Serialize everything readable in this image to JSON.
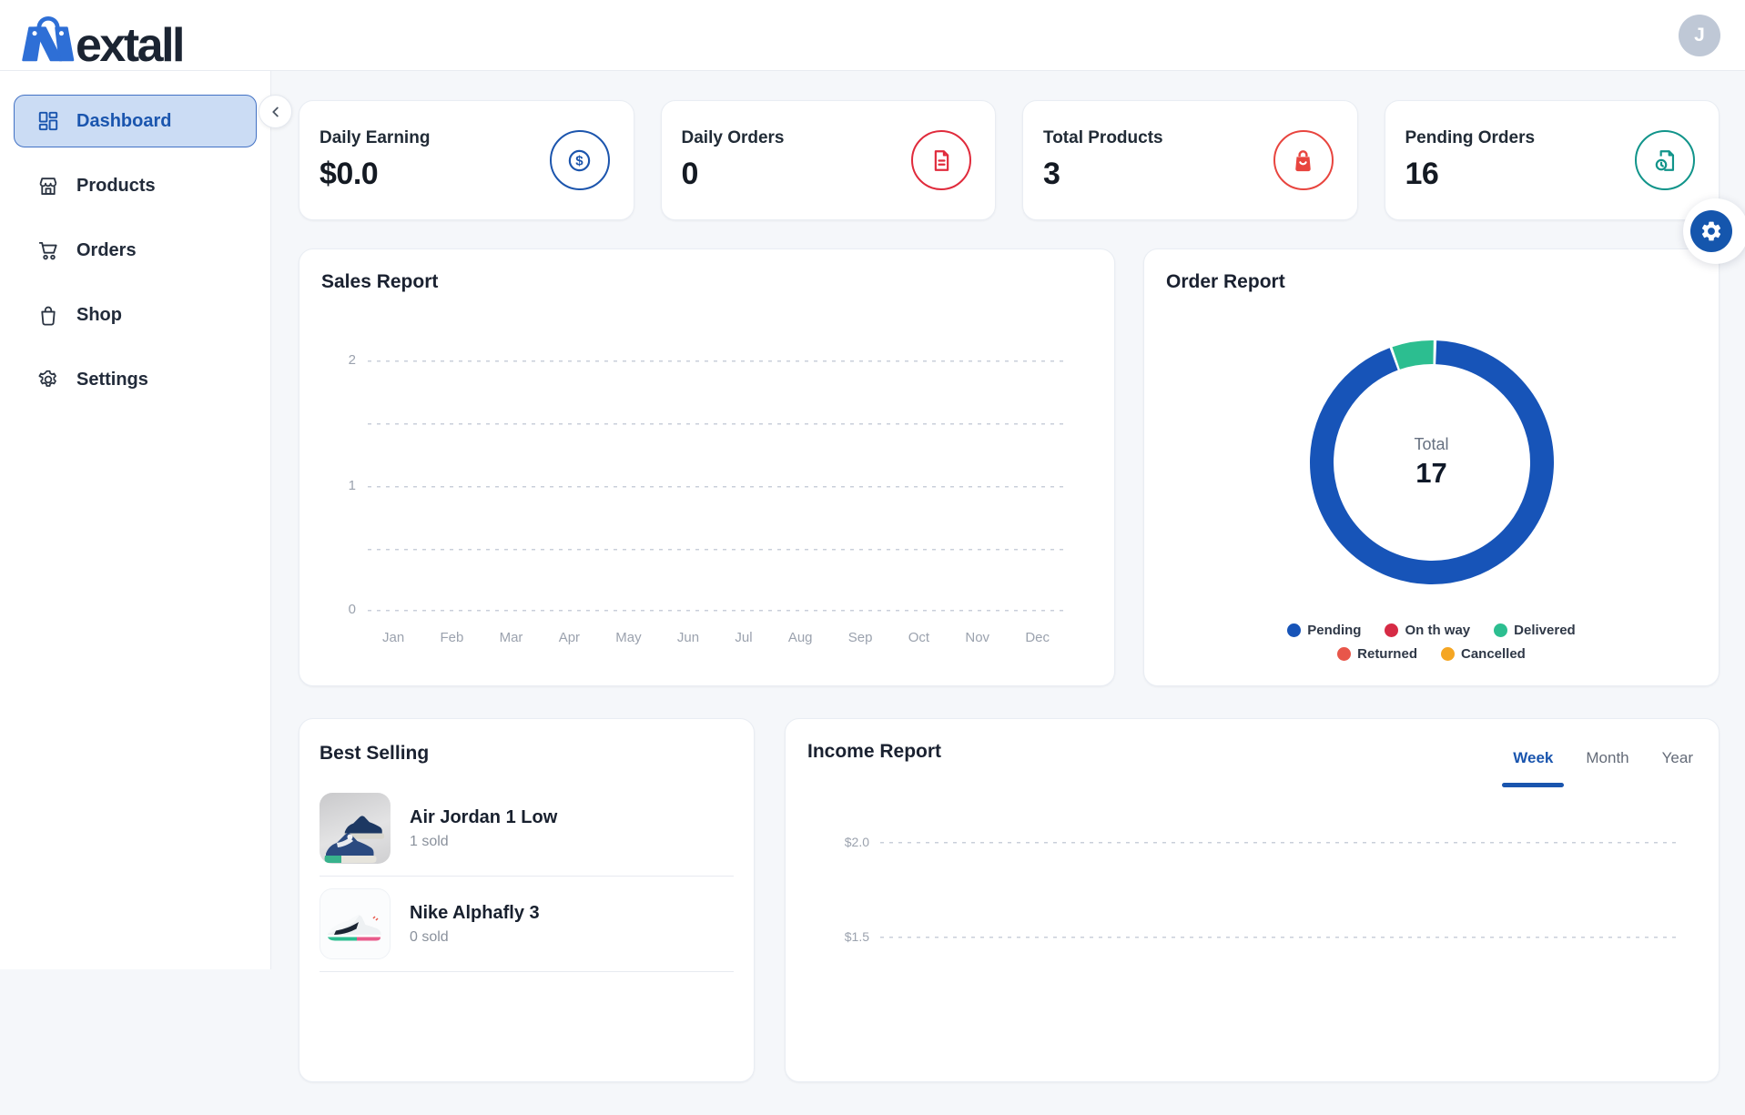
{
  "brand": {
    "name": "Nextall",
    "logo_text": "extall",
    "logo_icon": "shopping-bag-n-icon"
  },
  "header": {
    "avatar_initial": "J"
  },
  "sidebar": {
    "items": [
      {
        "label": "Dashboard",
        "icon": "dashboard-icon",
        "active": true
      },
      {
        "label": "Products",
        "icon": "storefront-icon",
        "active": false
      },
      {
        "label": "Orders",
        "icon": "cart-icon",
        "active": false
      },
      {
        "label": "Shop",
        "icon": "shop-bag-icon",
        "active": false
      },
      {
        "label": "Settings",
        "icon": "gear-icon",
        "active": false
      }
    ]
  },
  "stats": [
    {
      "label": "Daily Earning",
      "value": "$0.0",
      "icon": "dollar-circle-icon",
      "accent": "#1c55ad"
    },
    {
      "label": "Daily Orders",
      "value": "0",
      "icon": "document-icon",
      "accent": "#e02b3c"
    },
    {
      "label": "Total Products",
      "value": "3",
      "icon": "shopping-bag-icon",
      "accent": "#e8453f"
    },
    {
      "label": "Pending Orders",
      "value": "16",
      "icon": "file-clock-icon",
      "accent": "#11948a"
    }
  ],
  "chart_data": [
    {
      "id": "sales_report",
      "type": "line",
      "title": "Sales Report",
      "categories": [
        "Jan",
        "Feb",
        "Mar",
        "Apr",
        "May",
        "Jun",
        "Jul",
        "Aug",
        "Sep",
        "Oct",
        "Nov",
        "Dec"
      ],
      "series": [],
      "ylim": [
        0,
        2
      ],
      "yticks": [
        0,
        1,
        2
      ],
      "grid": "dashed-horizontal",
      "note": "empty chart, no data plotted"
    },
    {
      "id": "order_report",
      "type": "donut",
      "title": "Order Report",
      "center_label": "Total",
      "total": 17,
      "segments": [
        {
          "label": "Pending",
          "value": 16,
          "color": "#1754b8"
        },
        {
          "label": "On th way",
          "value": 0,
          "color": "#d62b45"
        },
        {
          "label": "Delivered",
          "value": 1,
          "color": "#2cbe90"
        },
        {
          "label": "Returned",
          "value": 0,
          "color": "#e8564a"
        },
        {
          "label": "Cancelled",
          "value": 0,
          "color": "#f5a623"
        }
      ],
      "legend_position": "bottom"
    },
    {
      "id": "income_report",
      "type": "line",
      "title": "Income Report",
      "tabs": [
        "Week",
        "Month",
        "Year"
      ],
      "active_tab": "Week",
      "ytick_labels_visible": [
        "$2.0",
        "$1.5"
      ],
      "grid": "dashed-horizontal",
      "note": "chart cut off at bottom of viewport"
    }
  ],
  "best_selling": {
    "title": "Best Selling",
    "items": [
      {
        "name": "Air Jordan 1 Low",
        "sold": "1 sold"
      },
      {
        "name": "Nike Alphafly 3",
        "sold": "0 sold"
      }
    ]
  }
}
